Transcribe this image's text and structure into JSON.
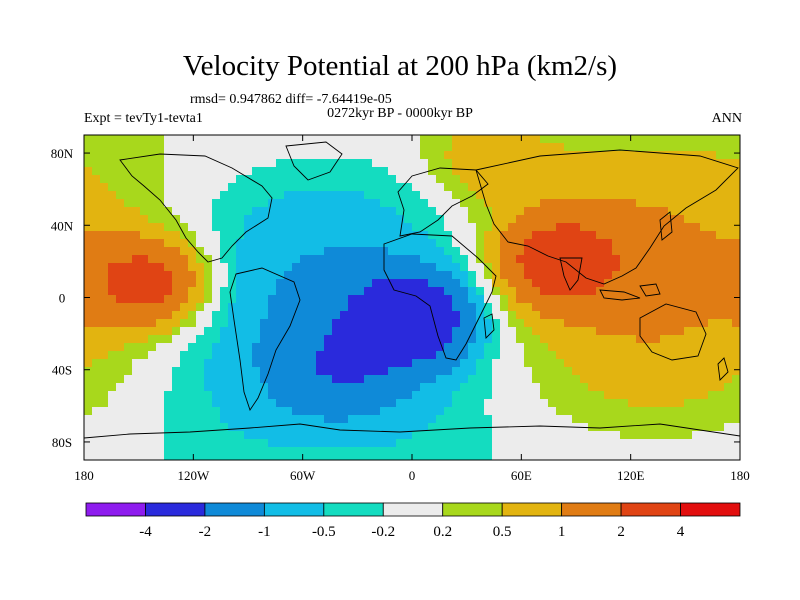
{
  "chart_data": {
    "type": "heatmap",
    "title": "Velocity Potential at 200 hPa (km2/s)",
    "stats_line": "rmsd= 0.947862  diff= -7.64419e-05",
    "subtitle": "0272kyr BP - 0000kyr BP",
    "left_label": "Expt = tevTy1-tevta1",
    "right_label": "ANN",
    "x_range": [
      -180,
      180
    ],
    "y_range": [
      -90,
      90
    ],
    "x_ticks": [
      {
        "value": -180,
        "label": "180"
      },
      {
        "value": -120,
        "label": "120W"
      },
      {
        "value": -60,
        "label": "60W"
      },
      {
        "value": 0,
        "label": "0"
      },
      {
        "value": 60,
        "label": "60E"
      },
      {
        "value": 120,
        "label": "120E"
      },
      {
        "value": 180,
        "label": "180"
      }
    ],
    "y_ticks": [
      {
        "value": 80,
        "label": "80N"
      },
      {
        "value": 40,
        "label": "40N"
      },
      {
        "value": 0,
        "label": "0"
      },
      {
        "value": -40,
        "label": "40S"
      },
      {
        "value": -80,
        "label": "80S"
      }
    ],
    "contour_levels": [
      -4,
      -2,
      -1,
      -0.5,
      -0.2,
      0.2,
      0.5,
      1,
      2,
      4
    ],
    "colorbar_labels": [
      "-4",
      "-2",
      "-1",
      "-0.5",
      "-0.2",
      "0.2",
      "0.5",
      "1",
      "2",
      "4"
    ],
    "colors": [
      "#8e1cee",
      "#2a2adc",
      "#0f8ad8",
      "#12bde6",
      "#14dcc0",
      "#ececec",
      "#a8d81c",
      "#e2b410",
      "#e07c14",
      "#e04414",
      "#e20e0e"
    ],
    "field_centers": [
      {
        "lon": 0,
        "lat": -12,
        "value": -3.0
      },
      {
        "lon": -40,
        "lat": -40,
        "value": -1.0
      },
      {
        "lon": 80,
        "lat": 20,
        "value": 2.5
      },
      {
        "lon": -145,
        "lat": 8,
        "value": 2.4
      },
      {
        "lon": 40,
        "lat": 75,
        "value": 0.7
      }
    ]
  }
}
